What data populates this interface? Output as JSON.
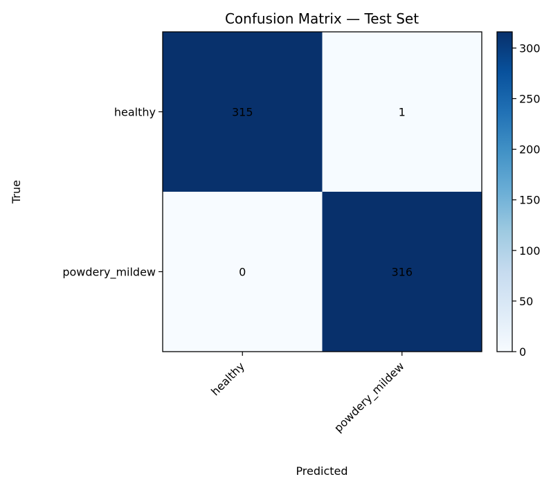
{
  "chart_data": {
    "type": "heatmap",
    "title": "Confusion Matrix — Test Set",
    "xlabel": "Predicted",
    "ylabel": "True",
    "x_categories": [
      "healthy",
      "powdery_mildew"
    ],
    "y_categories": [
      "healthy",
      "powdery_mildew"
    ],
    "matrix": [
      [
        315,
        1
      ],
      [
        0,
        316
      ]
    ],
    "colormap": "Blues",
    "colorbar": {
      "min": 0,
      "max": 316,
      "ticks": [
        0,
        50,
        100,
        150,
        200,
        250,
        300
      ]
    },
    "colors": {
      "low": "#f7fbff",
      "high": "#08306b",
      "text_on_dark": "#000000",
      "text_on_light": "#000000"
    }
  }
}
